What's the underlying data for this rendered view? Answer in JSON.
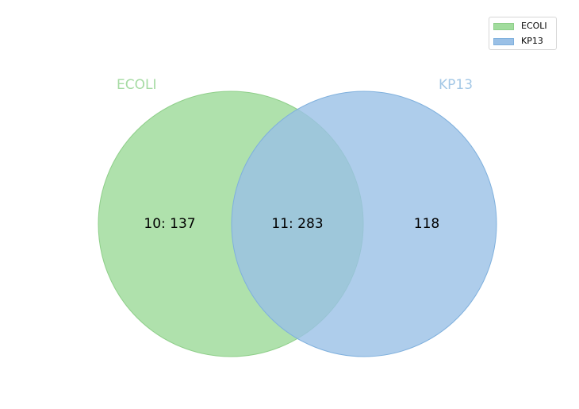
{
  "colors": {
    "set_a_fill": "#a1dc9d",
    "set_a_stroke": "#8fcf8a",
    "set_b_fill": "#9ac0e6",
    "set_b_stroke": "#7fb0dd",
    "set_a_title": "#a6dba3",
    "set_b_title": "#a4c8e6"
  },
  "sets": [
    {
      "name": "ECOLI",
      "title": "ECOLI"
    },
    {
      "name": "KP13",
      "title": "KP13"
    }
  ],
  "regions": {
    "a_only": "10: 137",
    "intersection": "11: 283",
    "b_only": "118"
  },
  "legend": {
    "position": "top-right",
    "items": [
      {
        "label": "ECOLI"
      },
      {
        "label": "KP13"
      }
    ]
  }
}
